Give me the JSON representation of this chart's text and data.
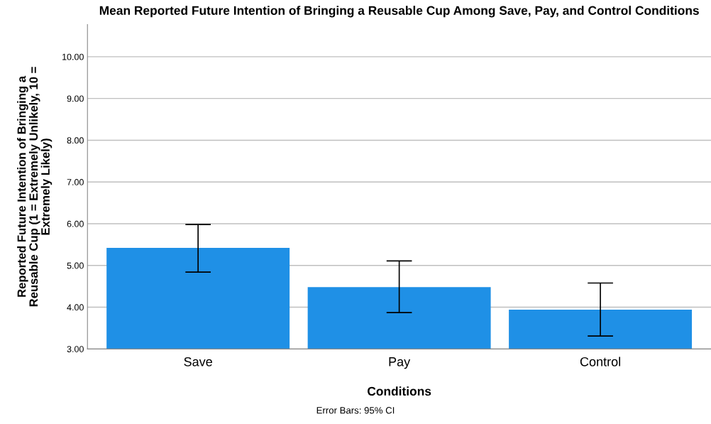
{
  "chart_data": {
    "type": "bar",
    "title": "Mean Reported Future Intention of Bringing a Reusable Cup Among Save, Pay, and Control Conditions",
    "xlabel": "Conditions",
    "ylabel": "Reported Future Intention of Bringing a\nReusable Cup (1 = Extremely Unlikely, 10 =\nExtremely Likely)",
    "categories": [
      "Save",
      "Pay",
      "Control"
    ],
    "values": [
      5.42,
      4.48,
      3.94
    ],
    "errors": [
      [
        4.84,
        5.98
      ],
      [
        3.87,
        5.11
      ],
      [
        3.31,
        4.58
      ]
    ],
    "color": "#1f90e6",
    "ylim": [
      3,
      10.77
    ],
    "yticks": [
      {
        "value": 3,
        "label": "3.00"
      },
      {
        "value": 4,
        "label": "4.00"
      },
      {
        "value": 5,
        "label": "5.00"
      },
      {
        "value": 6,
        "label": "6.00"
      },
      {
        "value": 7,
        "label": "7.00"
      },
      {
        "value": 8,
        "label": "8.00"
      },
      {
        "value": 9,
        "label": "9.00"
      },
      {
        "value": 10,
        "label": "10.00"
      }
    ],
    "grid": "y",
    "annotations": [
      "Error Bars: 95% CI"
    ]
  }
}
